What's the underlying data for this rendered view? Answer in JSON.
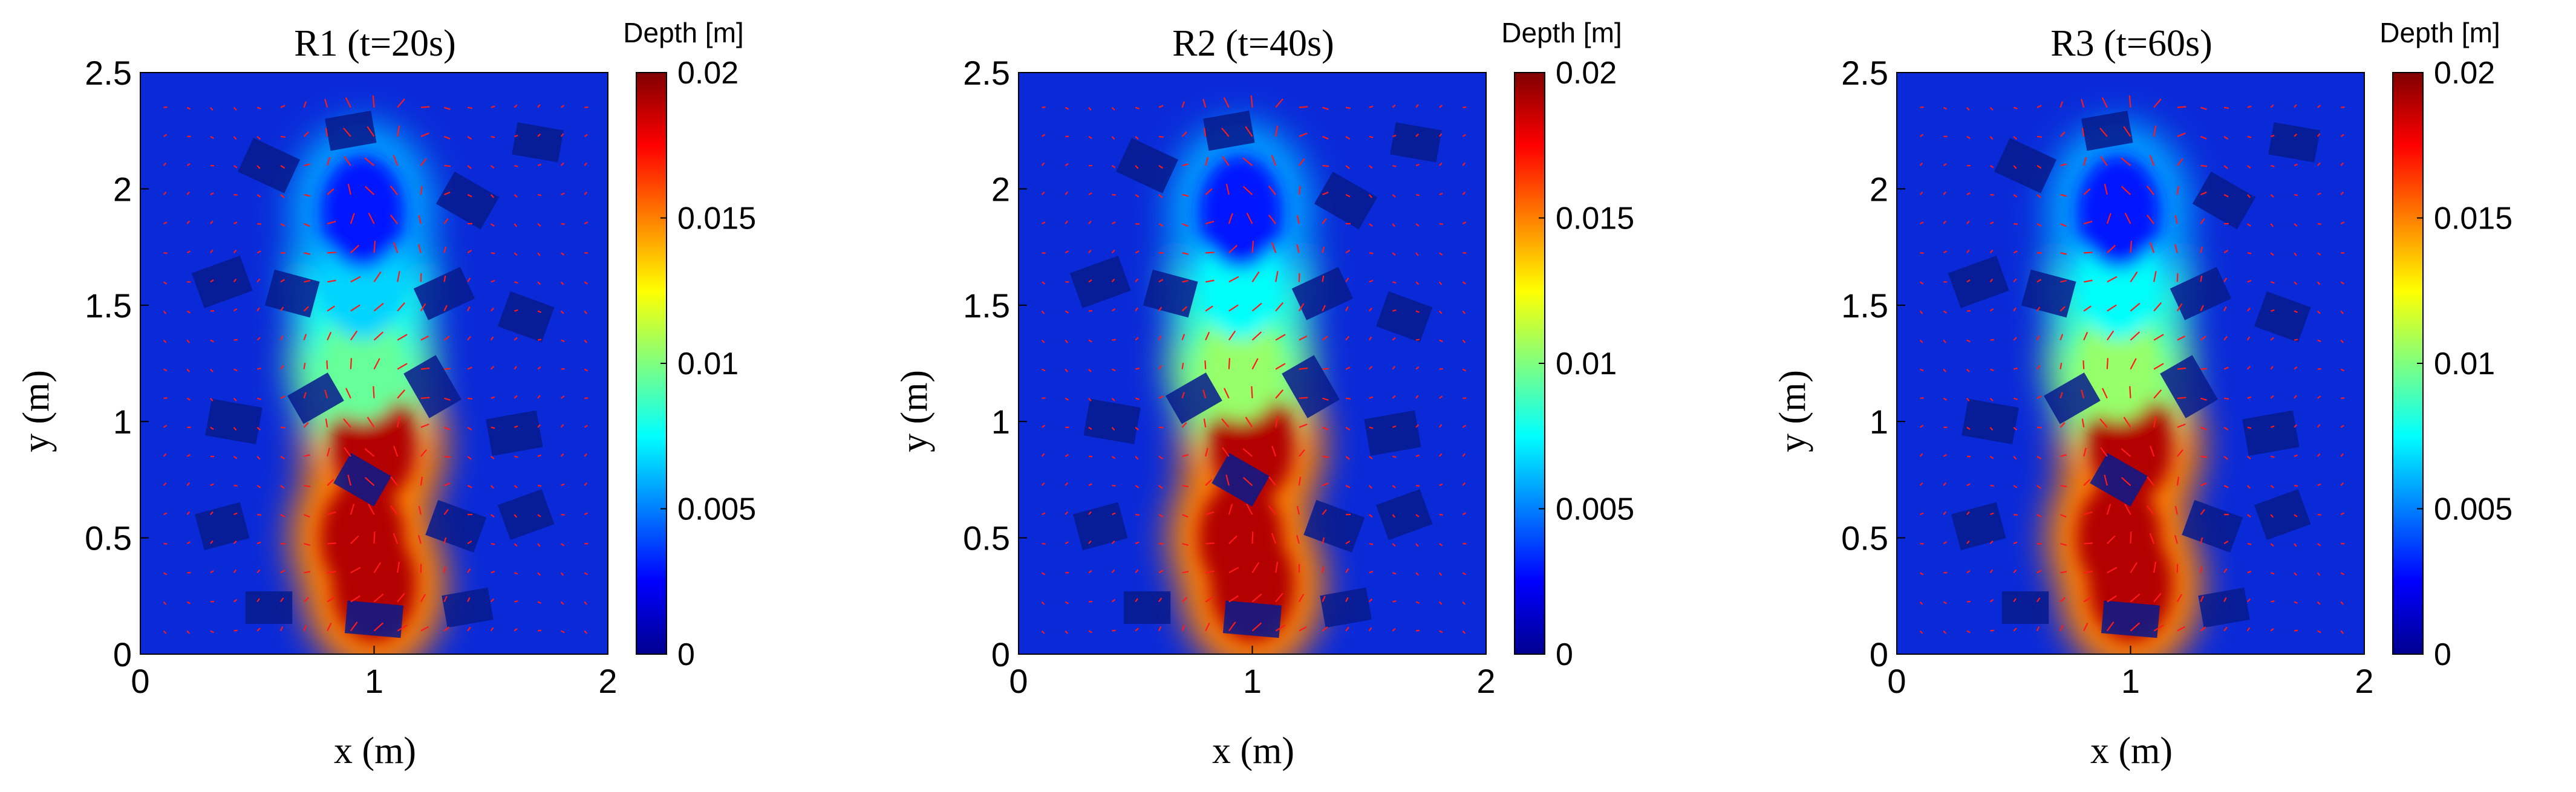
{
  "chart_data": [
    {
      "type": "heatmap",
      "title": "R1 (t=20s)",
      "xlabel": "x (m)",
      "ylabel": "y (m)",
      "xlim": [
        0,
        2
      ],
      "ylim": [
        0,
        2.5
      ],
      "xticks": [
        "0",
        "1",
        "2"
      ],
      "yticks": [
        "0",
        "0.5",
        "1",
        "1.5",
        "2",
        "2.5"
      ],
      "colorbar": {
        "label": "Depth [m]",
        "range": [
          0,
          0.02
        ],
        "ticks": [
          "0",
          "0.005",
          "0.01",
          "0.015",
          "0.02"
        ],
        "colormap": "jet"
      },
      "overlay": "velocity vectors (red arrows)",
      "flow_path": [
        {
          "x": 1.0,
          "y": 0.3,
          "depth": 0.02
        },
        {
          "x": 0.95,
          "y": 0.5,
          "depth": 0.02
        },
        {
          "x": 1.0,
          "y": 0.9,
          "depth": 0.02
        },
        {
          "x": 0.95,
          "y": 1.25,
          "depth": 0.01
        },
        {
          "x": 0.95,
          "y": 1.6,
          "depth": 0.007
        },
        {
          "x": 0.95,
          "y": 1.9,
          "depth": 0.003
        }
      ]
    },
    {
      "type": "heatmap",
      "title": "R2 (t=40s)",
      "xlabel": "x (m)",
      "ylabel": "y (m)",
      "xlim": [
        0,
        2
      ],
      "ylim": [
        0,
        2.5
      ],
      "xticks": [
        "0",
        "1",
        "2"
      ],
      "yticks": [
        "0",
        "0.5",
        "1",
        "1.5",
        "2",
        "2.5"
      ],
      "colorbar": {
        "label": "Depth [m]",
        "range": [
          0,
          0.02
        ],
        "ticks": [
          "0",
          "0.005",
          "0.01",
          "0.015",
          "0.02"
        ],
        "colormap": "jet"
      },
      "overlay": "velocity vectors (red arrows)",
      "flow_path": [
        {
          "x": 1.0,
          "y": 0.3,
          "depth": 0.02
        },
        {
          "x": 0.95,
          "y": 0.5,
          "depth": 0.02
        },
        {
          "x": 1.0,
          "y": 0.9,
          "depth": 0.02
        },
        {
          "x": 0.95,
          "y": 1.25,
          "depth": 0.011
        },
        {
          "x": 0.95,
          "y": 1.6,
          "depth": 0.008
        },
        {
          "x": 0.95,
          "y": 1.9,
          "depth": 0.003
        }
      ]
    },
    {
      "type": "heatmap",
      "title": "R3 (t=60s)",
      "xlabel": "x (m)",
      "ylabel": "y (m)",
      "xlim": [
        0,
        2
      ],
      "ylim": [
        0,
        2.5
      ],
      "xticks": [
        "0",
        "1",
        "2"
      ],
      "yticks": [
        "0",
        "0.5",
        "1",
        "1.5",
        "2",
        "2.5"
      ],
      "colorbar": {
        "label": "Depth [m]",
        "range": [
          0,
          0.02
        ],
        "ticks": [
          "0",
          "0.005",
          "0.01",
          "0.015",
          "0.02"
        ],
        "colormap": "jet"
      },
      "overlay": "velocity vectors (red arrows)",
      "flow_path": [
        {
          "x": 1.0,
          "y": 0.3,
          "depth": 0.02
        },
        {
          "x": 0.95,
          "y": 0.5,
          "depth": 0.02
        },
        {
          "x": 1.0,
          "y": 0.9,
          "depth": 0.02
        },
        {
          "x": 0.95,
          "y": 1.25,
          "depth": 0.011
        },
        {
          "x": 0.95,
          "y": 1.6,
          "depth": 0.008
        },
        {
          "x": 0.95,
          "y": 1.9,
          "depth": 0.003
        }
      ]
    }
  ],
  "colors": {
    "background_depth": "#0a2ad8",
    "deep_red": "#c40000",
    "arrow": "#ff1a1a",
    "block_fill": "#071a8c"
  }
}
